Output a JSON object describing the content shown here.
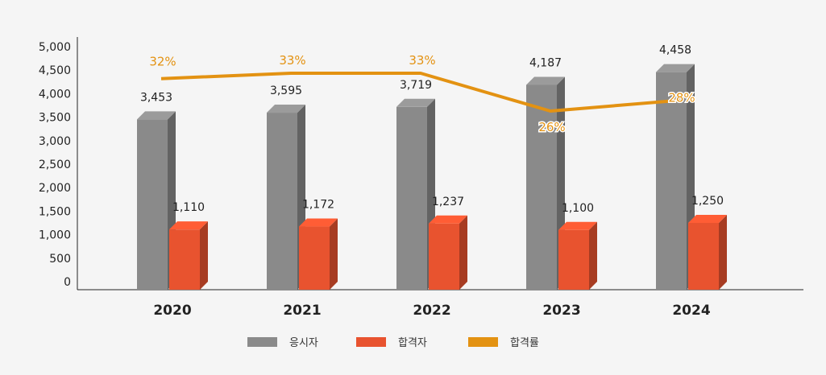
{
  "chart_data": {
    "type": "bar",
    "categories": [
      "2020",
      "2021",
      "2022",
      "2023",
      "2024"
    ],
    "series": [
      {
        "name": "응시자",
        "type": "bar",
        "values": [
          3453,
          3595,
          3719,
          4187,
          4458
        ],
        "labels": [
          "3,453",
          "3,595",
          "3,719",
          "4,187",
          "4,458"
        ],
        "color": "#8a8a8a"
      },
      {
        "name": "합격자",
        "type": "bar",
        "values": [
          1110,
          1172,
          1237,
          1100,
          1250
        ],
        "labels": [
          "1,110",
          "1,172",
          "1,237",
          "1,100",
          "1,250"
        ],
        "color": "#e8532f"
      },
      {
        "name": "합격률",
        "type": "line",
        "values": [
          32,
          33,
          33,
          26,
          28
        ],
        "labels": [
          "32%",
          "33%",
          "33%",
          "26%",
          "28%"
        ],
        "color": "#e39212"
      }
    ],
    "yticks": [
      "5,000",
      "4,500",
      "4,000",
      "3,500",
      "3,000",
      "2,500",
      "2,000",
      "1,500",
      "1,000",
      "500",
      "0"
    ],
    "ylim": [
      0,
      5000
    ],
    "grid": false,
    "legend": "bottom",
    "title": "",
    "xlabel": "",
    "ylabel": ""
  }
}
